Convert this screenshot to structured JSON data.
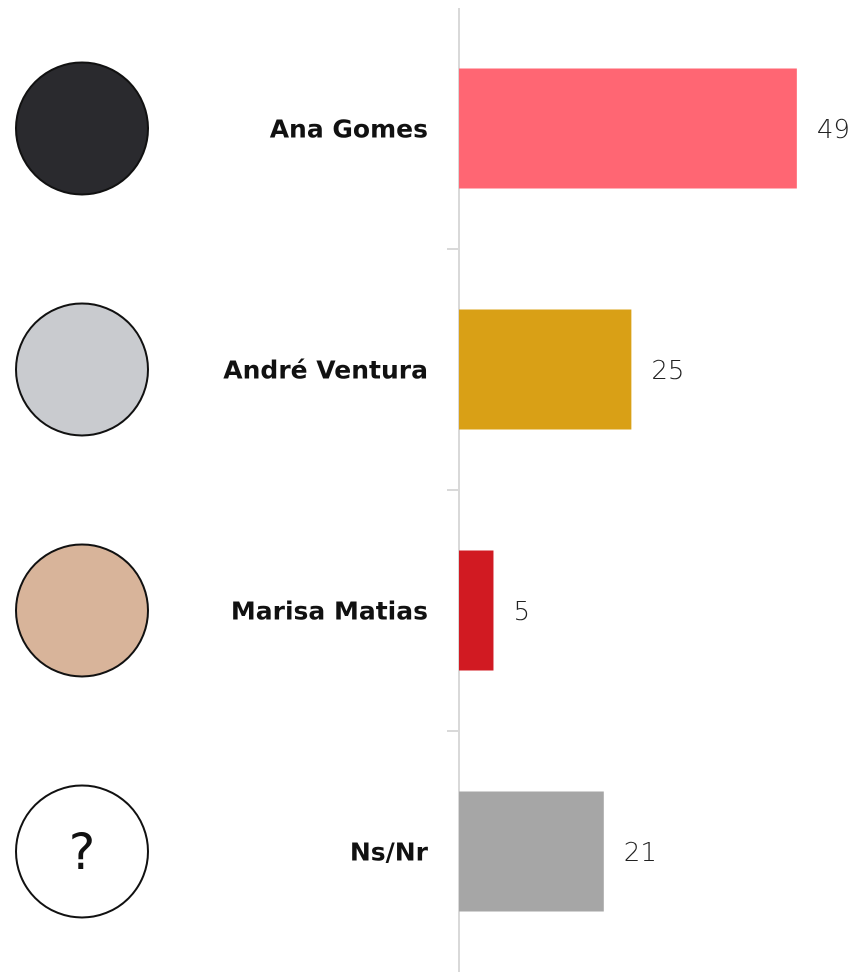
{
  "chart_data": {
    "type": "bar",
    "orientation": "horizontal",
    "categories": [
      "Ana Gomes",
      "André Ventura",
      "Marisa Matias",
      "Ns/Nr"
    ],
    "category_icons": [
      null,
      null,
      null,
      "?"
    ],
    "series": [
      {
        "values": [
          49,
          25,
          5,
          21
        ],
        "colors": [
          "#ff6673",
          "#d9a016",
          "#d11a22",
          "#a6a6a6"
        ]
      }
    ],
    "xlim": [
      0,
      57
    ]
  }
}
